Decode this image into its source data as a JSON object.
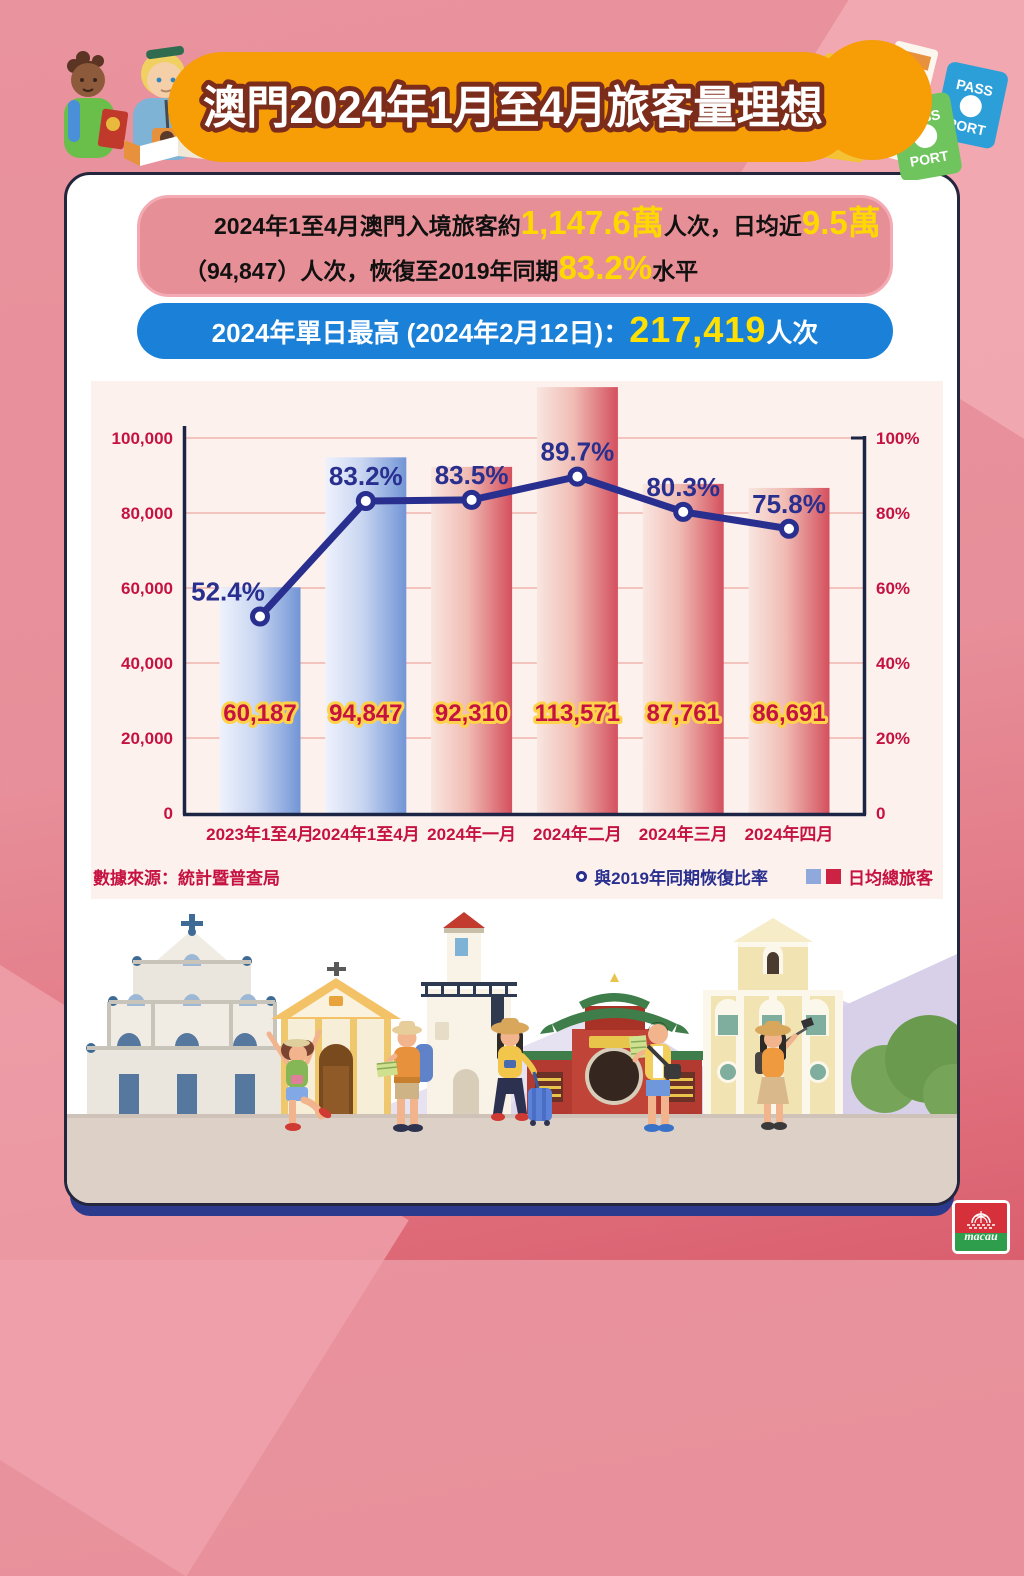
{
  "header": {
    "title": "澳門2024年1月至4月旅客量理想"
  },
  "summary_box": {
    "l1_seg1": "2024年1至4月澳門入境旅客約",
    "l1_hl1": "1,147.6萬",
    "l1_seg2": "人次，日均近",
    "l1_hl2": "9.5萬",
    "l2_seg1": "（94,847）人次，恢復至2019年同期",
    "l2_hl1": "83.2%",
    "l2_seg2": "水平"
  },
  "peak_box": {
    "label": "2024年單日最高 (2024年2月12日)：",
    "value": "217,419",
    "unit": "人次"
  },
  "chart_data": {
    "type": "bar+line combo",
    "categories": [
      "2023年1至4月",
      "2024年1至4月",
      "2024年一月",
      "2024年二月",
      "2024年三月",
      "2024年四月"
    ],
    "series": [
      {
        "name": "日均總旅客",
        "type": "bar",
        "values": [
          60187,
          94847,
          92310,
          113571,
          87761,
          86691
        ],
        "value_labels": [
          "60,187",
          "94,847",
          "92,310",
          "113,571",
          "87,761",
          "86,691"
        ],
        "bar_styles": [
          "blue",
          "blue",
          "red",
          "red",
          "red",
          "red"
        ]
      },
      {
        "name": "與2019年同期恢復比率",
        "type": "line",
        "unit": "%",
        "values": [
          52.4,
          83.2,
          83.5,
          89.7,
          80.3,
          75.8
        ],
        "value_labels": [
          "52.4%",
          "83.2%",
          "83.5%",
          "89.7%",
          "80.3%",
          "75.8%"
        ]
      }
    ],
    "left_axis": {
      "min": 0,
      "max": 100000,
      "tick_labels": [
        "0",
        "20,000",
        "40,000",
        "60,000",
        "80,000",
        "100,000"
      ]
    },
    "right_axis": {
      "min": 0,
      "max": 100,
      "tick_labels": [
        "0",
        "20%",
        "40%",
        "60%",
        "80%",
        "100%"
      ]
    },
    "grid": true,
    "legend_position": "bottom-right",
    "palette": {
      "blue_from": "#eef2fc",
      "blue_mid": "#c9d6f1",
      "blue_to": "#7295d6",
      "red_from": "#f9e6e0",
      "red_mid": "#f0bcb4",
      "red_to": "#d4505e",
      "line": "#292f8e",
      "grid": "#f0b5ae",
      "axis": "#1d2544",
      "tick_label": "#c51240",
      "bar_label_fill": "#c51240",
      "bar_label_stroke": "#ffd24a"
    }
  },
  "legend": {
    "source": "數據來源：統計暨普查局",
    "line_label": "與2019年同期恢復比率",
    "bar_label": "日均總旅客"
  },
  "decor": {
    "map_label": "MAP",
    "passport_green_top": "PASS",
    "passport_green_bottom": "PORT",
    "passport_blue_top": "PASS",
    "passport_blue_bottom": "PORT"
  },
  "footer_logo": {
    "text": "macau"
  }
}
